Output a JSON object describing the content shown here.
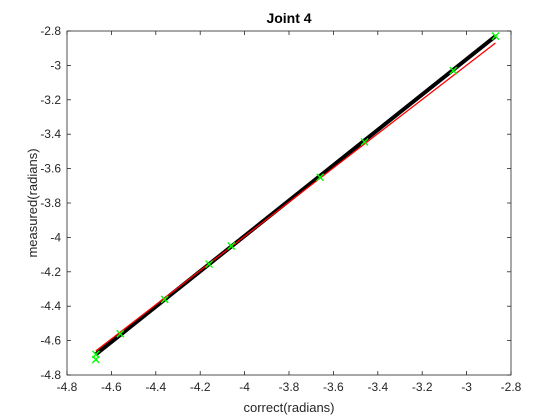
{
  "chart_data": {
    "type": "line",
    "title": "Joint 4",
    "xlabel": "correct(radians)",
    "ylabel": "measured(radians)",
    "xlim": [
      -4.8,
      -2.8
    ],
    "ylim": [
      -4.8,
      -2.8
    ],
    "xticks": [
      "-4.8",
      "-4.6",
      "-4.4",
      "-4.2",
      "-4",
      "-3.8",
      "-3.6",
      "-3.4",
      "-3.2",
      "-3",
      "-2.8"
    ],
    "yticks": [
      "-4.8",
      "-4.6",
      "-4.4",
      "-4.2",
      "-4",
      "-3.8",
      "-3.6",
      "-3.4",
      "-3.2",
      "-3",
      "-2.8"
    ],
    "grid": false,
    "legend": "none",
    "series": [
      {
        "style": "thick-line",
        "color": "#000000",
        "x": [
          -4.67,
          -2.87
        ],
        "y": [
          -4.68,
          -2.83
        ]
      },
      {
        "style": "thin-line",
        "color": "#ff0000",
        "x": [
          -4.67,
          -2.87
        ],
        "y": [
          -4.66,
          -2.87
        ]
      },
      {
        "style": "markers",
        "marker": "x",
        "color": "#00ff00",
        "x": [
          -4.67,
          -4.67,
          -4.56,
          -4.36,
          -4.16,
          -4.06,
          -3.66,
          -3.46,
          -3.06,
          -2.87
        ],
        "y": [
          -4.68,
          -4.71,
          -4.56,
          -4.36,
          -4.155,
          -4.05,
          -3.65,
          -3.445,
          -3.03,
          -2.83
        ]
      }
    ]
  }
}
